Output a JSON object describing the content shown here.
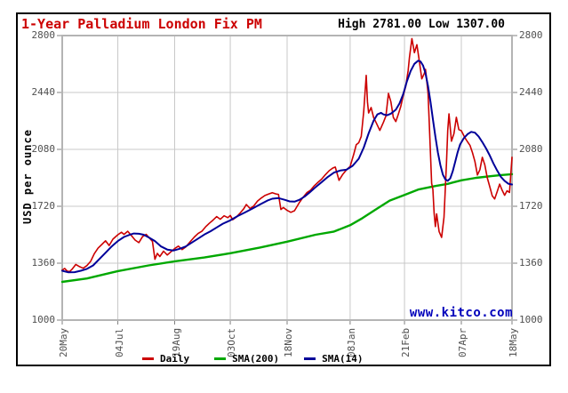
{
  "header": {
    "title": "1-Year Palladium London Fix PM",
    "title_color": "#cc0000",
    "high_low_label": "High 2781.00 Low 1307.00"
  },
  "watermark": {
    "text": "www.kitco.com",
    "color": "#0000bb"
  },
  "y_axis": {
    "title": "USD per ounce",
    "ticks": [
      "2800",
      "2440",
      "2080",
      "1720",
      "1360",
      "1000"
    ],
    "min": 1000,
    "max": 2800
  },
  "x_axis": {
    "ticks": [
      "20May",
      "04Jul",
      "19Aug",
      "03Oct",
      "18Nov",
      "08Jan",
      "21Feb",
      "07Apr",
      "18May"
    ]
  },
  "legend": {
    "items": [
      {
        "label": "Daily",
        "color": "#cc0000"
      },
      {
        "label": "SMA(200)",
        "color": "#00a800"
      },
      {
        "label": "SMA(14)",
        "color": "#000099"
      }
    ]
  },
  "chart_data": {
    "type": "line",
    "title": "1-Year Palladium London Fix PM",
    "ylabel": "USD per ounce",
    "ylim": [
      1000,
      2800
    ],
    "y_tick_step": 360,
    "grid": true,
    "high": 2781.0,
    "low": 1307.0,
    "x_unit": "days since 20May (0 = 20May, 364 = 18May)",
    "x_domain": [
      0,
      364
    ],
    "x_tick_days": [
      0,
      45,
      91,
      136,
      182,
      233,
      277,
      323,
      364
    ],
    "x_tick_labels": [
      "20May",
      "04Jul",
      "19Aug",
      "03Oct",
      "18Nov",
      "08Jan",
      "21Feb",
      "07Apr",
      "18May"
    ],
    "series": [
      {
        "name": "SMA(200)",
        "color": "#00a800",
        "width": 2.4,
        "points": [
          [
            0,
            1242
          ],
          [
            20,
            1263
          ],
          [
            45,
            1310
          ],
          [
            70,
            1346
          ],
          [
            91,
            1372
          ],
          [
            115,
            1396
          ],
          [
            136,
            1423
          ],
          [
            160,
            1459
          ],
          [
            182,
            1496
          ],
          [
            205,
            1540
          ],
          [
            220,
            1560
          ],
          [
            233,
            1600
          ],
          [
            243,
            1645
          ],
          [
            253,
            1696
          ],
          [
            265,
            1756
          ],
          [
            277,
            1792
          ],
          [
            288,
            1826
          ],
          [
            302,
            1848
          ],
          [
            312,
            1862
          ],
          [
            323,
            1884
          ],
          [
            335,
            1900
          ],
          [
            348,
            1912
          ],
          [
            356,
            1918
          ],
          [
            364,
            1923
          ]
        ]
      },
      {
        "name": "Daily",
        "color": "#cc0000",
        "width": 1.6,
        "points": [
          [
            0,
            1316
          ],
          [
            2,
            1327
          ],
          [
            4,
            1310
          ],
          [
            6,
            1307
          ],
          [
            8,
            1322
          ],
          [
            11,
            1352
          ],
          [
            14,
            1338
          ],
          [
            17,
            1328
          ],
          [
            20,
            1345
          ],
          [
            23,
            1372
          ],
          [
            26,
            1420
          ],
          [
            29,
            1455
          ],
          [
            32,
            1478
          ],
          [
            35,
            1502
          ],
          [
            38,
            1472
          ],
          [
            41,
            1512
          ],
          [
            45,
            1540
          ],
          [
            48,
            1556
          ],
          [
            50,
            1542
          ],
          [
            53,
            1562
          ],
          [
            56,
            1535
          ],
          [
            59,
            1506
          ],
          [
            62,
            1490
          ],
          [
            65,
            1528
          ],
          [
            68,
            1542
          ],
          [
            70,
            1524
          ],
          [
            73,
            1498
          ],
          [
            75,
            1385
          ],
          [
            77,
            1422
          ],
          [
            79,
            1402
          ],
          [
            82,
            1436
          ],
          [
            85,
            1412
          ],
          [
            88,
            1432
          ],
          [
            91,
            1452
          ],
          [
            94,
            1468
          ],
          [
            97,
            1446
          ],
          [
            100,
            1463
          ],
          [
            104,
            1500
          ],
          [
            107,
            1526
          ],
          [
            110,
            1548
          ],
          [
            113,
            1562
          ],
          [
            116,
            1590
          ],
          [
            119,
            1612
          ],
          [
            122,
            1632
          ],
          [
            125,
            1655
          ],
          [
            128,
            1638
          ],
          [
            131,
            1660
          ],
          [
            134,
            1648
          ],
          [
            136,
            1662
          ],
          [
            138,
            1635
          ],
          [
            141,
            1652
          ],
          [
            144,
            1678
          ],
          [
            147,
            1705
          ],
          [
            149,
            1731
          ],
          [
            152,
            1706
          ],
          [
            155,
            1722
          ],
          [
            158,
            1752
          ],
          [
            161,
            1772
          ],
          [
            164,
            1788
          ],
          [
            167,
            1797
          ],
          [
            170,
            1806
          ],
          [
            173,
            1798
          ],
          [
            175,
            1795
          ],
          [
            177,
            1700
          ],
          [
            179,
            1712
          ],
          [
            182,
            1694
          ],
          [
            185,
            1682
          ],
          [
            188,
            1692
          ],
          [
            192,
            1745
          ],
          [
            195,
            1778
          ],
          [
            198,
            1806
          ],
          [
            201,
            1822
          ],
          [
            204,
            1850
          ],
          [
            207,
            1872
          ],
          [
            210,
            1892
          ],
          [
            213,
            1920
          ],
          [
            216,
            1945
          ],
          [
            219,
            1962
          ],
          [
            221,
            1968
          ],
          [
            224,
            1884
          ],
          [
            227,
            1922
          ],
          [
            230,
            1950
          ],
          [
            233,
            1972
          ],
          [
            236,
            2052
          ],
          [
            238,
            2110
          ],
          [
            240,
            2122
          ],
          [
            242,
            2162
          ],
          [
            244,
            2320
          ],
          [
            246,
            2548
          ],
          [
            247,
            2380
          ],
          [
            248,
            2310
          ],
          [
            250,
            2345
          ],
          [
            252,
            2282
          ],
          [
            254,
            2250
          ],
          [
            257,
            2200
          ],
          [
            260,
            2252
          ],
          [
            262,
            2292
          ],
          [
            264,
            2434
          ],
          [
            266,
            2380
          ],
          [
            268,
            2282
          ],
          [
            270,
            2256
          ],
          [
            272,
            2302
          ],
          [
            274,
            2352
          ],
          [
            276,
            2422
          ],
          [
            278,
            2480
          ],
          [
            280,
            2580
          ],
          [
            281,
            2660
          ],
          [
            283,
            2781
          ],
          [
            285,
            2692
          ],
          [
            287,
            2742
          ],
          [
            289,
            2640
          ],
          [
            291,
            2526
          ],
          [
            293,
            2560
          ],
          [
            294,
            2586
          ],
          [
            296,
            2440
          ],
          [
            297,
            2250
          ],
          [
            298,
            2050
          ],
          [
            299,
            1865
          ],
          [
            300,
            1827
          ],
          [
            301,
            1675
          ],
          [
            302,
            1592
          ],
          [
            303,
            1672
          ],
          [
            305,
            1560
          ],
          [
            307,
            1523
          ],
          [
            309,
            1650
          ],
          [
            311,
            1995
          ],
          [
            312,
            2200
          ],
          [
            313,
            2305
          ],
          [
            315,
            2132
          ],
          [
            317,
            2180
          ],
          [
            319,
            2283
          ],
          [
            321,
            2205
          ],
          [
            323,
            2198
          ],
          [
            326,
            2152
          ],
          [
            328,
            2128
          ],
          [
            330,
            2106
          ],
          [
            332,
            2060
          ],
          [
            334,
            2003
          ],
          [
            336,
            1918
          ],
          [
            338,
            1952
          ],
          [
            340,
            2030
          ],
          [
            342,
            1982
          ],
          [
            344,
            1900
          ],
          [
            346,
            1844
          ],
          [
            348,
            1786
          ],
          [
            350,
            1766
          ],
          [
            352,
            1812
          ],
          [
            354,
            1860
          ],
          [
            356,
            1822
          ],
          [
            358,
            1790
          ],
          [
            360,
            1818
          ],
          [
            362,
            1808
          ],
          [
            364,
            2030
          ]
        ]
      },
      {
        "name": "SMA(14)",
        "color": "#000099",
        "width": 2,
        "points": [
          [
            0,
            1312
          ],
          [
            5,
            1302
          ],
          [
            10,
            1303
          ],
          [
            15,
            1312
          ],
          [
            20,
            1324
          ],
          [
            25,
            1346
          ],
          [
            30,
            1386
          ],
          [
            35,
            1426
          ],
          [
            40,
            1466
          ],
          [
            45,
            1500
          ],
          [
            50,
            1526
          ],
          [
            55,
            1541
          ],
          [
            58,
            1548
          ],
          [
            62,
            1546
          ],
          [
            66,
            1540
          ],
          [
            70,
            1523
          ],
          [
            75,
            1500
          ],
          [
            80,
            1466
          ],
          [
            85,
            1446
          ],
          [
            90,
            1440
          ],
          [
            95,
            1451
          ],
          [
            100,
            1466
          ],
          [
            105,
            1491
          ],
          [
            110,
            1516
          ],
          [
            115,
            1541
          ],
          [
            120,
            1562
          ],
          [
            125,
            1586
          ],
          [
            130,
            1610
          ],
          [
            136,
            1631
          ],
          [
            142,
            1658
          ],
          [
            148,
            1681
          ],
          [
            154,
            1706
          ],
          [
            160,
            1731
          ],
          [
            166,
            1756
          ],
          [
            170,
            1768
          ],
          [
            175,
            1772
          ],
          [
            180,
            1761
          ],
          [
            184,
            1751
          ],
          [
            188,
            1749
          ],
          [
            192,
            1761
          ],
          [
            196,
            1781
          ],
          [
            200,
            1806
          ],
          [
            205,
            1841
          ],
          [
            210,
            1873
          ],
          [
            215,
            1906
          ],
          [
            220,
            1933
          ],
          [
            225,
            1946
          ],
          [
            230,
            1951
          ],
          [
            235,
            1976
          ],
          [
            240,
            2021
          ],
          [
            244,
            2091
          ],
          [
            248,
            2181
          ],
          [
            252,
            2261
          ],
          [
            255,
            2301
          ],
          [
            258,
            2311
          ],
          [
            260,
            2301
          ],
          [
            263,
            2296
          ],
          [
            266,
            2306
          ],
          [
            270,
            2331
          ],
          [
            273,
            2371
          ],
          [
            276,
            2431
          ],
          [
            279,
            2511
          ],
          [
            282,
            2576
          ],
          [
            285,
            2621
          ],
          [
            288,
            2641
          ],
          [
            290,
            2636
          ],
          [
            292,
            2611
          ],
          [
            294,
            2561
          ],
          [
            296,
            2481
          ],
          [
            298,
            2381
          ],
          [
            300,
            2271
          ],
          [
            302,
            2161
          ],
          [
            304,
            2061
          ],
          [
            306,
            1981
          ],
          [
            308,
            1921
          ],
          [
            310,
            1891
          ],
          [
            312,
            1881
          ],
          [
            314,
            1896
          ],
          [
            316,
            1941
          ],
          [
            318,
            2001
          ],
          [
            320,
            2061
          ],
          [
            322,
            2111
          ],
          [
            325,
            2151
          ],
          [
            328,
            2176
          ],
          [
            331,
            2191
          ],
          [
            334,
            2186
          ],
          [
            337,
            2161
          ],
          [
            340,
            2126
          ],
          [
            343,
            2086
          ],
          [
            346,
            2041
          ],
          [
            349,
            1991
          ],
          [
            352,
            1946
          ],
          [
            355,
            1906
          ],
          [
            358,
            1881
          ],
          [
            361,
            1863
          ],
          [
            364,
            1858
          ]
        ]
      }
    ]
  },
  "style": {
    "grid_color": "#c8c8c8",
    "frame_color": "#b4b4b4",
    "tick_color": "#808080"
  }
}
